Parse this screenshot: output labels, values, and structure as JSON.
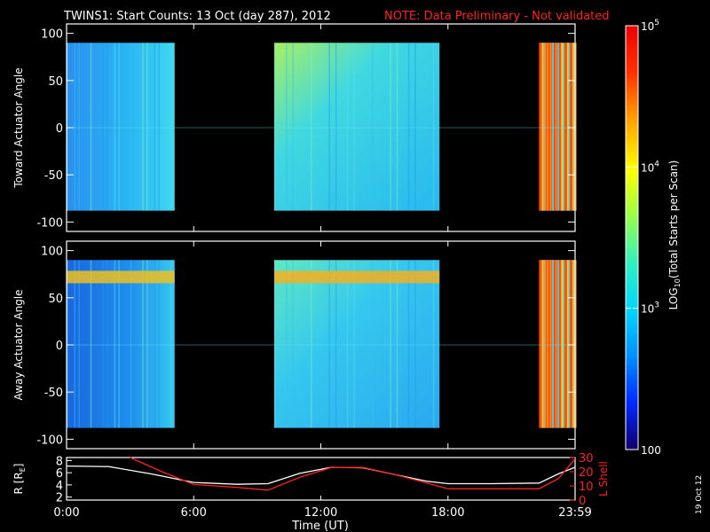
{
  "header": {
    "title": "TWINS1: Start Counts: 13 Oct (day 287), 2012",
    "note": "NOTE: Data Preliminary - Not validated"
  },
  "side_date": "19 Oct 12",
  "colors": {
    "background": "#000000",
    "frame": "#ffffff",
    "note": "#ff2020",
    "r_line": "#ffffff",
    "l_line": "#ff2020"
  },
  "chart_data": [
    {
      "type": "heatmap",
      "panel": "top",
      "ylabel": "Toward Actuator Angle",
      "ylim": [
        -110,
        110
      ],
      "yticks": [
        "100",
        "50",
        "0",
        "-50",
        "-100"
      ],
      "ytick_values": [
        100,
        50,
        0,
        -50,
        -100
      ],
      "x_unit": "hours UT",
      "xlim": [
        0,
        24
      ],
      "blocks": [
        {
          "start_hr": 0.0,
          "end_hr": 5.1,
          "angle_range": [
            -88,
            90
          ],
          "level": "low (~10^3)",
          "color": "#2fc0f0"
        },
        {
          "start_hr": 9.8,
          "end_hr": 17.6,
          "angle_range": [
            -88,
            90
          ],
          "level": "low-mid (~10^3.2)",
          "color": "#33d0e0"
        },
        {
          "start_hr": 22.3,
          "end_hr": 24.0,
          "angle_range": [
            -88,
            90
          ],
          "level": "high (~10^4.5)",
          "color": "#ff7a10"
        }
      ]
    },
    {
      "type": "heatmap",
      "panel": "middle",
      "ylabel": "Away Actuator Angle",
      "ylim": [
        -110,
        110
      ],
      "yticks": [
        "100",
        "50",
        "0",
        "-50",
        "-100"
      ],
      "ytick_values": [
        100,
        50,
        0,
        -50,
        -100
      ],
      "x_unit": "hours UT",
      "xlim": [
        0,
        24
      ],
      "blocks": [
        {
          "start_hr": 0.0,
          "end_hr": 5.1,
          "angle_range": [
            -88,
            90
          ],
          "level": "low (~10^3)",
          "color": "#1e88ee"
        },
        {
          "start_hr": 9.8,
          "end_hr": 17.6,
          "angle_range": [
            -88,
            90
          ],
          "level": "low-mid (~10^3.2)",
          "color": "#33cce6"
        },
        {
          "start_hr": 22.3,
          "end_hr": 24.0,
          "angle_range": [
            -88,
            90
          ],
          "level": "high (~10^4.5)",
          "color": "#ff7a10"
        }
      ],
      "bands": [
        {
          "angle_center": 72,
          "start_hr": 0.0,
          "end_hr": 5.1,
          "level": "elevated",
          "color": "#f0c020"
        },
        {
          "angle_center": 72,
          "start_hr": 9.8,
          "end_hr": 17.6,
          "level": "elevated",
          "color": "#f5b020"
        }
      ]
    },
    {
      "type": "line",
      "panel": "bottom",
      "xlabel": "Time (UT)",
      "xticks": [
        "0:00",
        "6:00",
        "12:00",
        "18:00",
        "23:59"
      ],
      "xtick_values": [
        0,
        6,
        12,
        18,
        24
      ],
      "left_axis": {
        "label": "R [R",
        "label_sub": "E",
        "label_end": "]",
        "ylim": [
          1.5,
          8.5
        ],
        "yticks": [
          "8",
          "6",
          "4",
          "2"
        ],
        "ytick_values": [
          8,
          6,
          4,
          2
        ]
      },
      "right_axis": {
        "label": "L Shell",
        "ylim": [
          0,
          30
        ],
        "yticks": [
          "30",
          "20",
          "10",
          "0"
        ],
        "ytick_values": [
          30,
          20,
          10,
          0
        ]
      },
      "series": [
        {
          "axis": "left",
          "color": "#ffffff",
          "x": [
            0,
            2,
            4,
            6,
            8,
            9.5,
            11,
            12.5,
            14,
            15.5,
            17,
            18,
            20,
            22.3,
            23.2,
            24
          ],
          "y": [
            7.1,
            7.0,
            5.8,
            4.4,
            4.1,
            4.2,
            5.9,
            6.9,
            6.8,
            5.7,
            4.6,
            4.2,
            4.2,
            4.3,
            5.8,
            6.9
          ]
        },
        {
          "axis": "right",
          "color": "#ff2020",
          "x": [
            3.0,
            4.5,
            6,
            8,
            9.5,
            11,
            12.5,
            14,
            15.5,
            17,
            18,
            20,
            22.3,
            23.2,
            24
          ],
          "y": [
            30,
            20,
            11,
            9,
            7,
            16,
            23,
            23,
            18,
            12,
            8,
            8,
            8,
            15,
            29
          ]
        }
      ]
    }
  ],
  "colorbar": {
    "label_prefix": "LOG",
    "label_sub": "10",
    "label_suffix": "(Total Starts per Scan)",
    "ticks": [
      {
        "base": "10",
        "exp": "5",
        "value": 100000
      },
      {
        "base": "10",
        "exp": "4",
        "value": 10000
      },
      {
        "base": "10",
        "exp": "3",
        "value": 1000
      },
      {
        "base": "100",
        "exp": "",
        "value": 100
      }
    ],
    "scale": "log",
    "range": [
      100,
      100000
    ],
    "colors": [
      "#10006b",
      "#0028ff",
      "#0090ff",
      "#00d6ff",
      "#30f0c0",
      "#a0ff40",
      "#ffff00",
      "#ffa000",
      "#ff3000",
      "#ee0000"
    ]
  }
}
